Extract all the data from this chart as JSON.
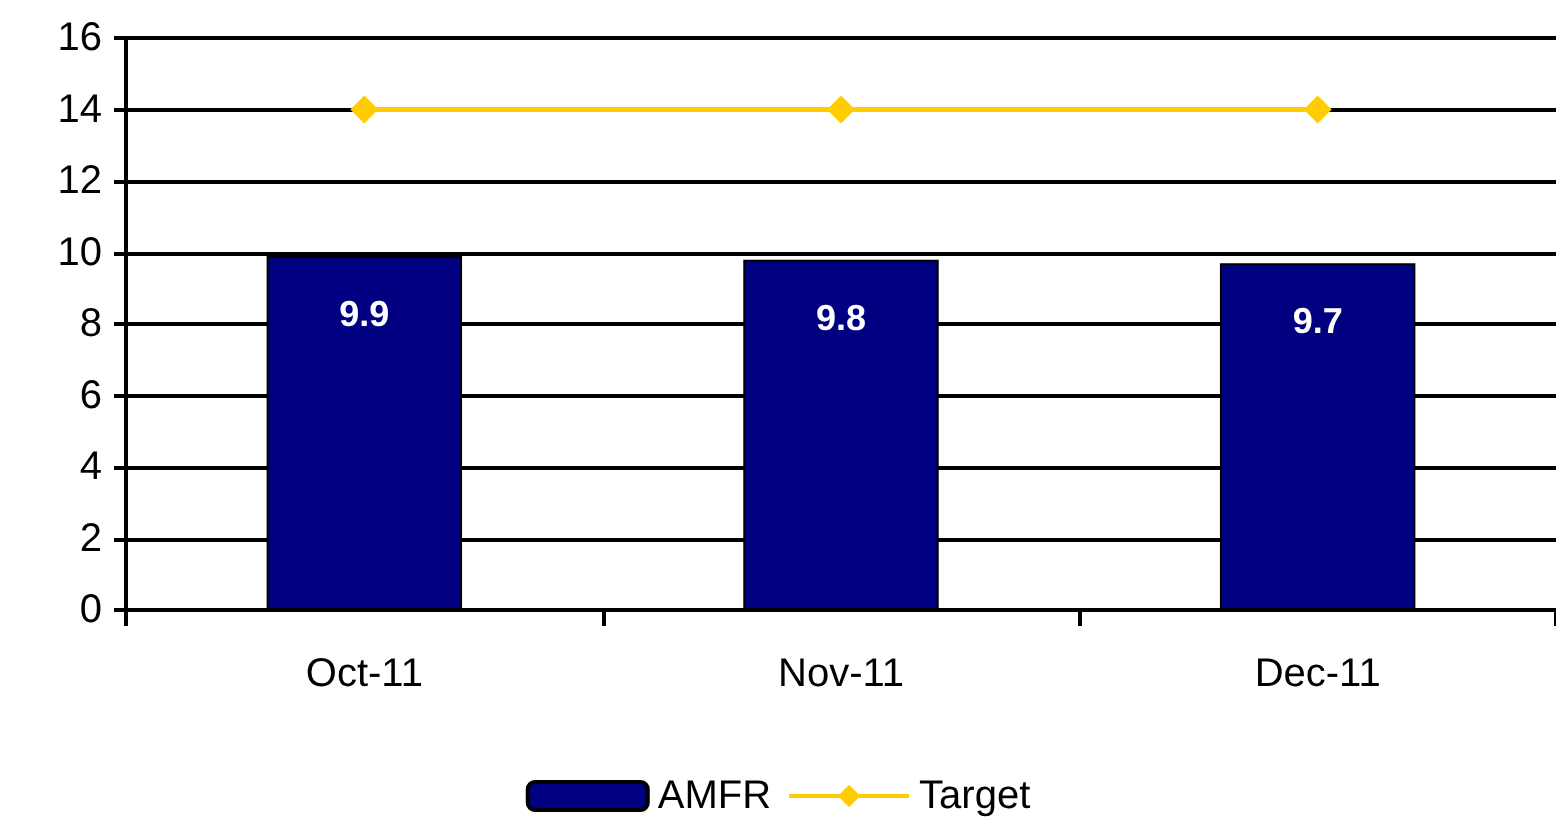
{
  "chart_data": {
    "type": "bar",
    "categories": [
      "Oct-11",
      "Nov-11",
      "Dec-11"
    ],
    "series": [
      {
        "name": "AMFR",
        "color": "#000080",
        "values": [
          9.9,
          9.8,
          9.7
        ],
        "value_labels": [
          "9.9",
          "9.8",
          "9.7"
        ]
      },
      {
        "name": "Target",
        "type": "line",
        "color": "#ffcc00",
        "values": [
          14,
          14,
          14
        ],
        "marker": "diamond"
      }
    ],
    "ylim": [
      0,
      16
    ],
    "yticks": [
      0,
      2,
      4,
      6,
      8,
      10,
      12,
      14,
      16
    ],
    "grid": "y",
    "legend": "bottom"
  }
}
